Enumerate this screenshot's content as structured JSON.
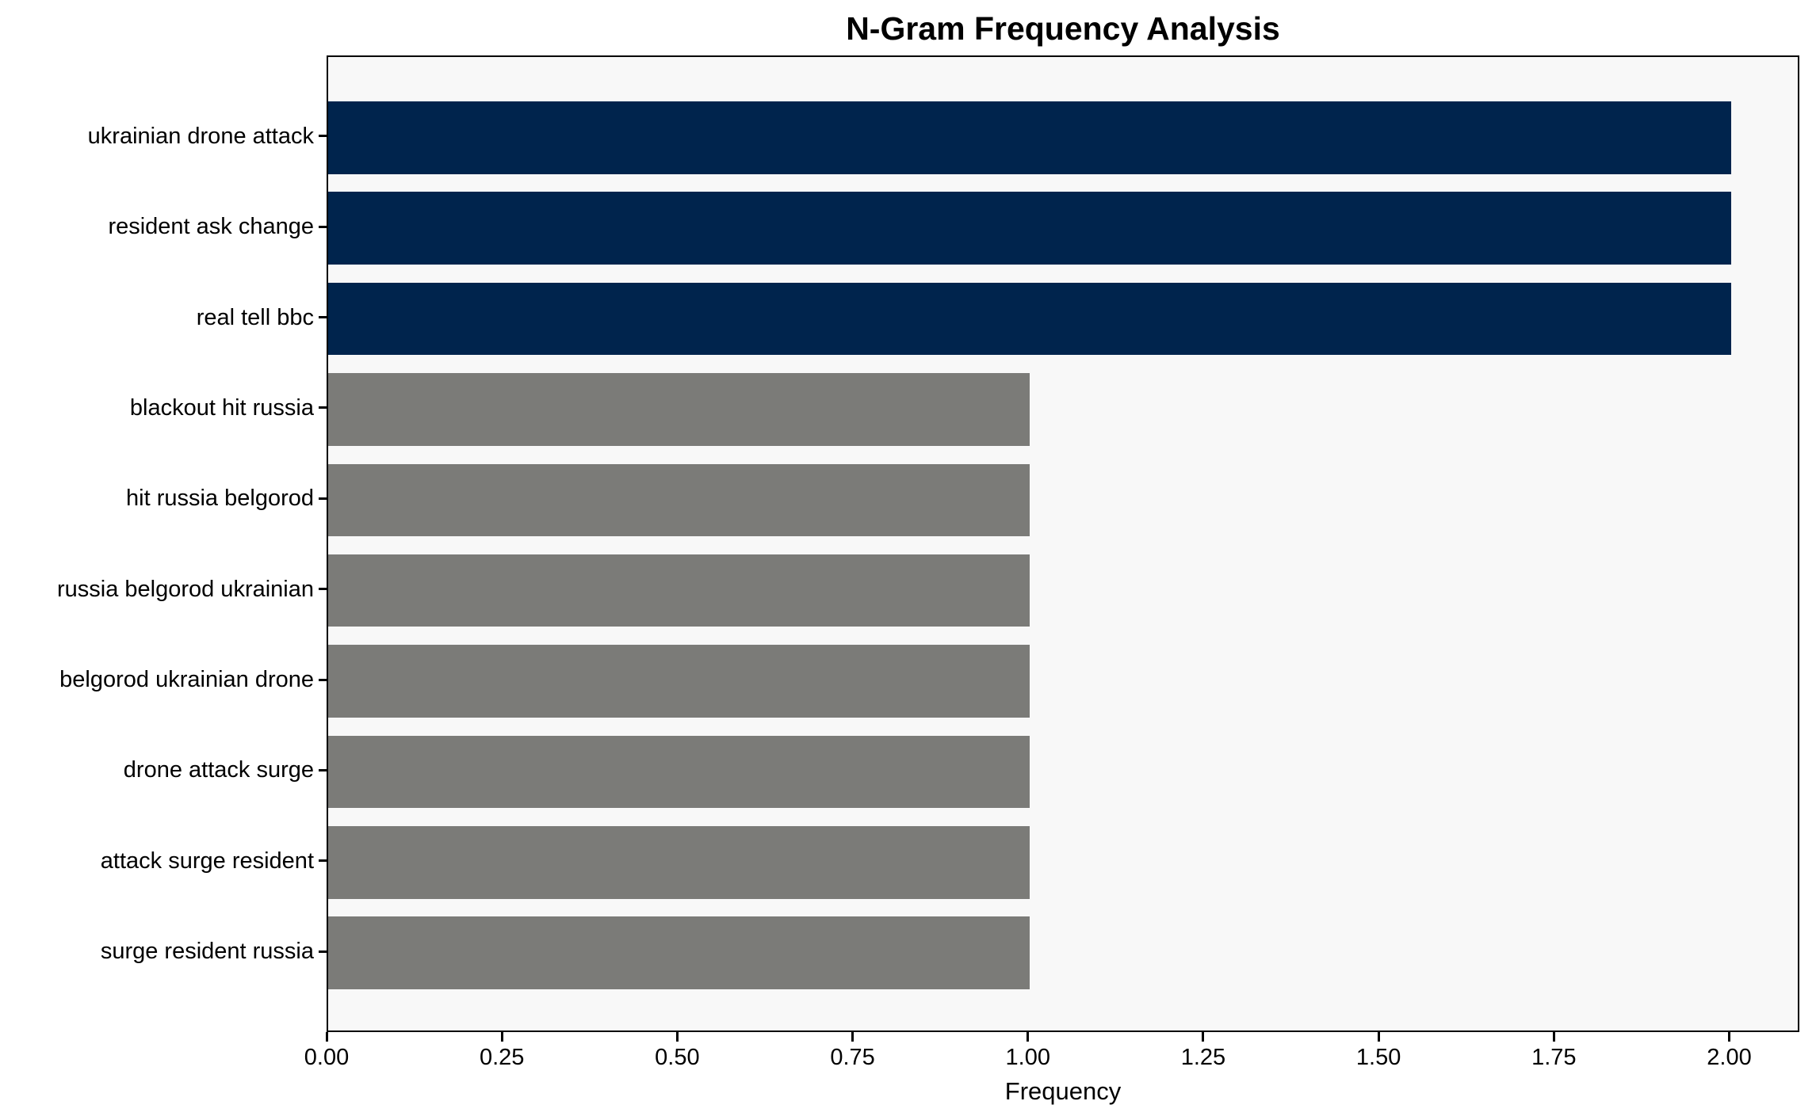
{
  "chart_data": {
    "type": "bar",
    "orientation": "horizontal",
    "title": "N-Gram Frequency Analysis",
    "xlabel": "Frequency",
    "ylabel": "",
    "categories": [
      "ukrainian drone attack",
      "resident ask change",
      "real tell bbc",
      "blackout hit russia",
      "hit russia belgorod",
      "russia belgorod ukrainian",
      "belgorod ukrainian drone",
      "drone attack surge",
      "attack surge resident",
      "surge resident russia"
    ],
    "values": [
      2,
      2,
      2,
      1,
      1,
      1,
      1,
      1,
      1,
      1
    ],
    "bar_colors": [
      "#00244d",
      "#00244d",
      "#00244d",
      "#7b7b78",
      "#7b7b78",
      "#7b7b78",
      "#7b7b78",
      "#7b7b78",
      "#7b7b78",
      "#7b7b78"
    ],
    "highlight_color": "#00244d",
    "base_color": "#7b7b78",
    "xlim": [
      0,
      2.1
    ],
    "x_tick_values": [
      0.0,
      0.25,
      0.5,
      0.75,
      1.0,
      1.25,
      1.5,
      1.75,
      2.0
    ],
    "x_tick_labels": [
      "0.00",
      "0.25",
      "0.50",
      "0.75",
      "1.00",
      "1.25",
      "1.50",
      "1.75",
      "2.00"
    ],
    "grid": false,
    "legend": null,
    "plot_background": "#f8f8f8",
    "figure_background": "#ffffff",
    "axis_color": "#000000"
  }
}
